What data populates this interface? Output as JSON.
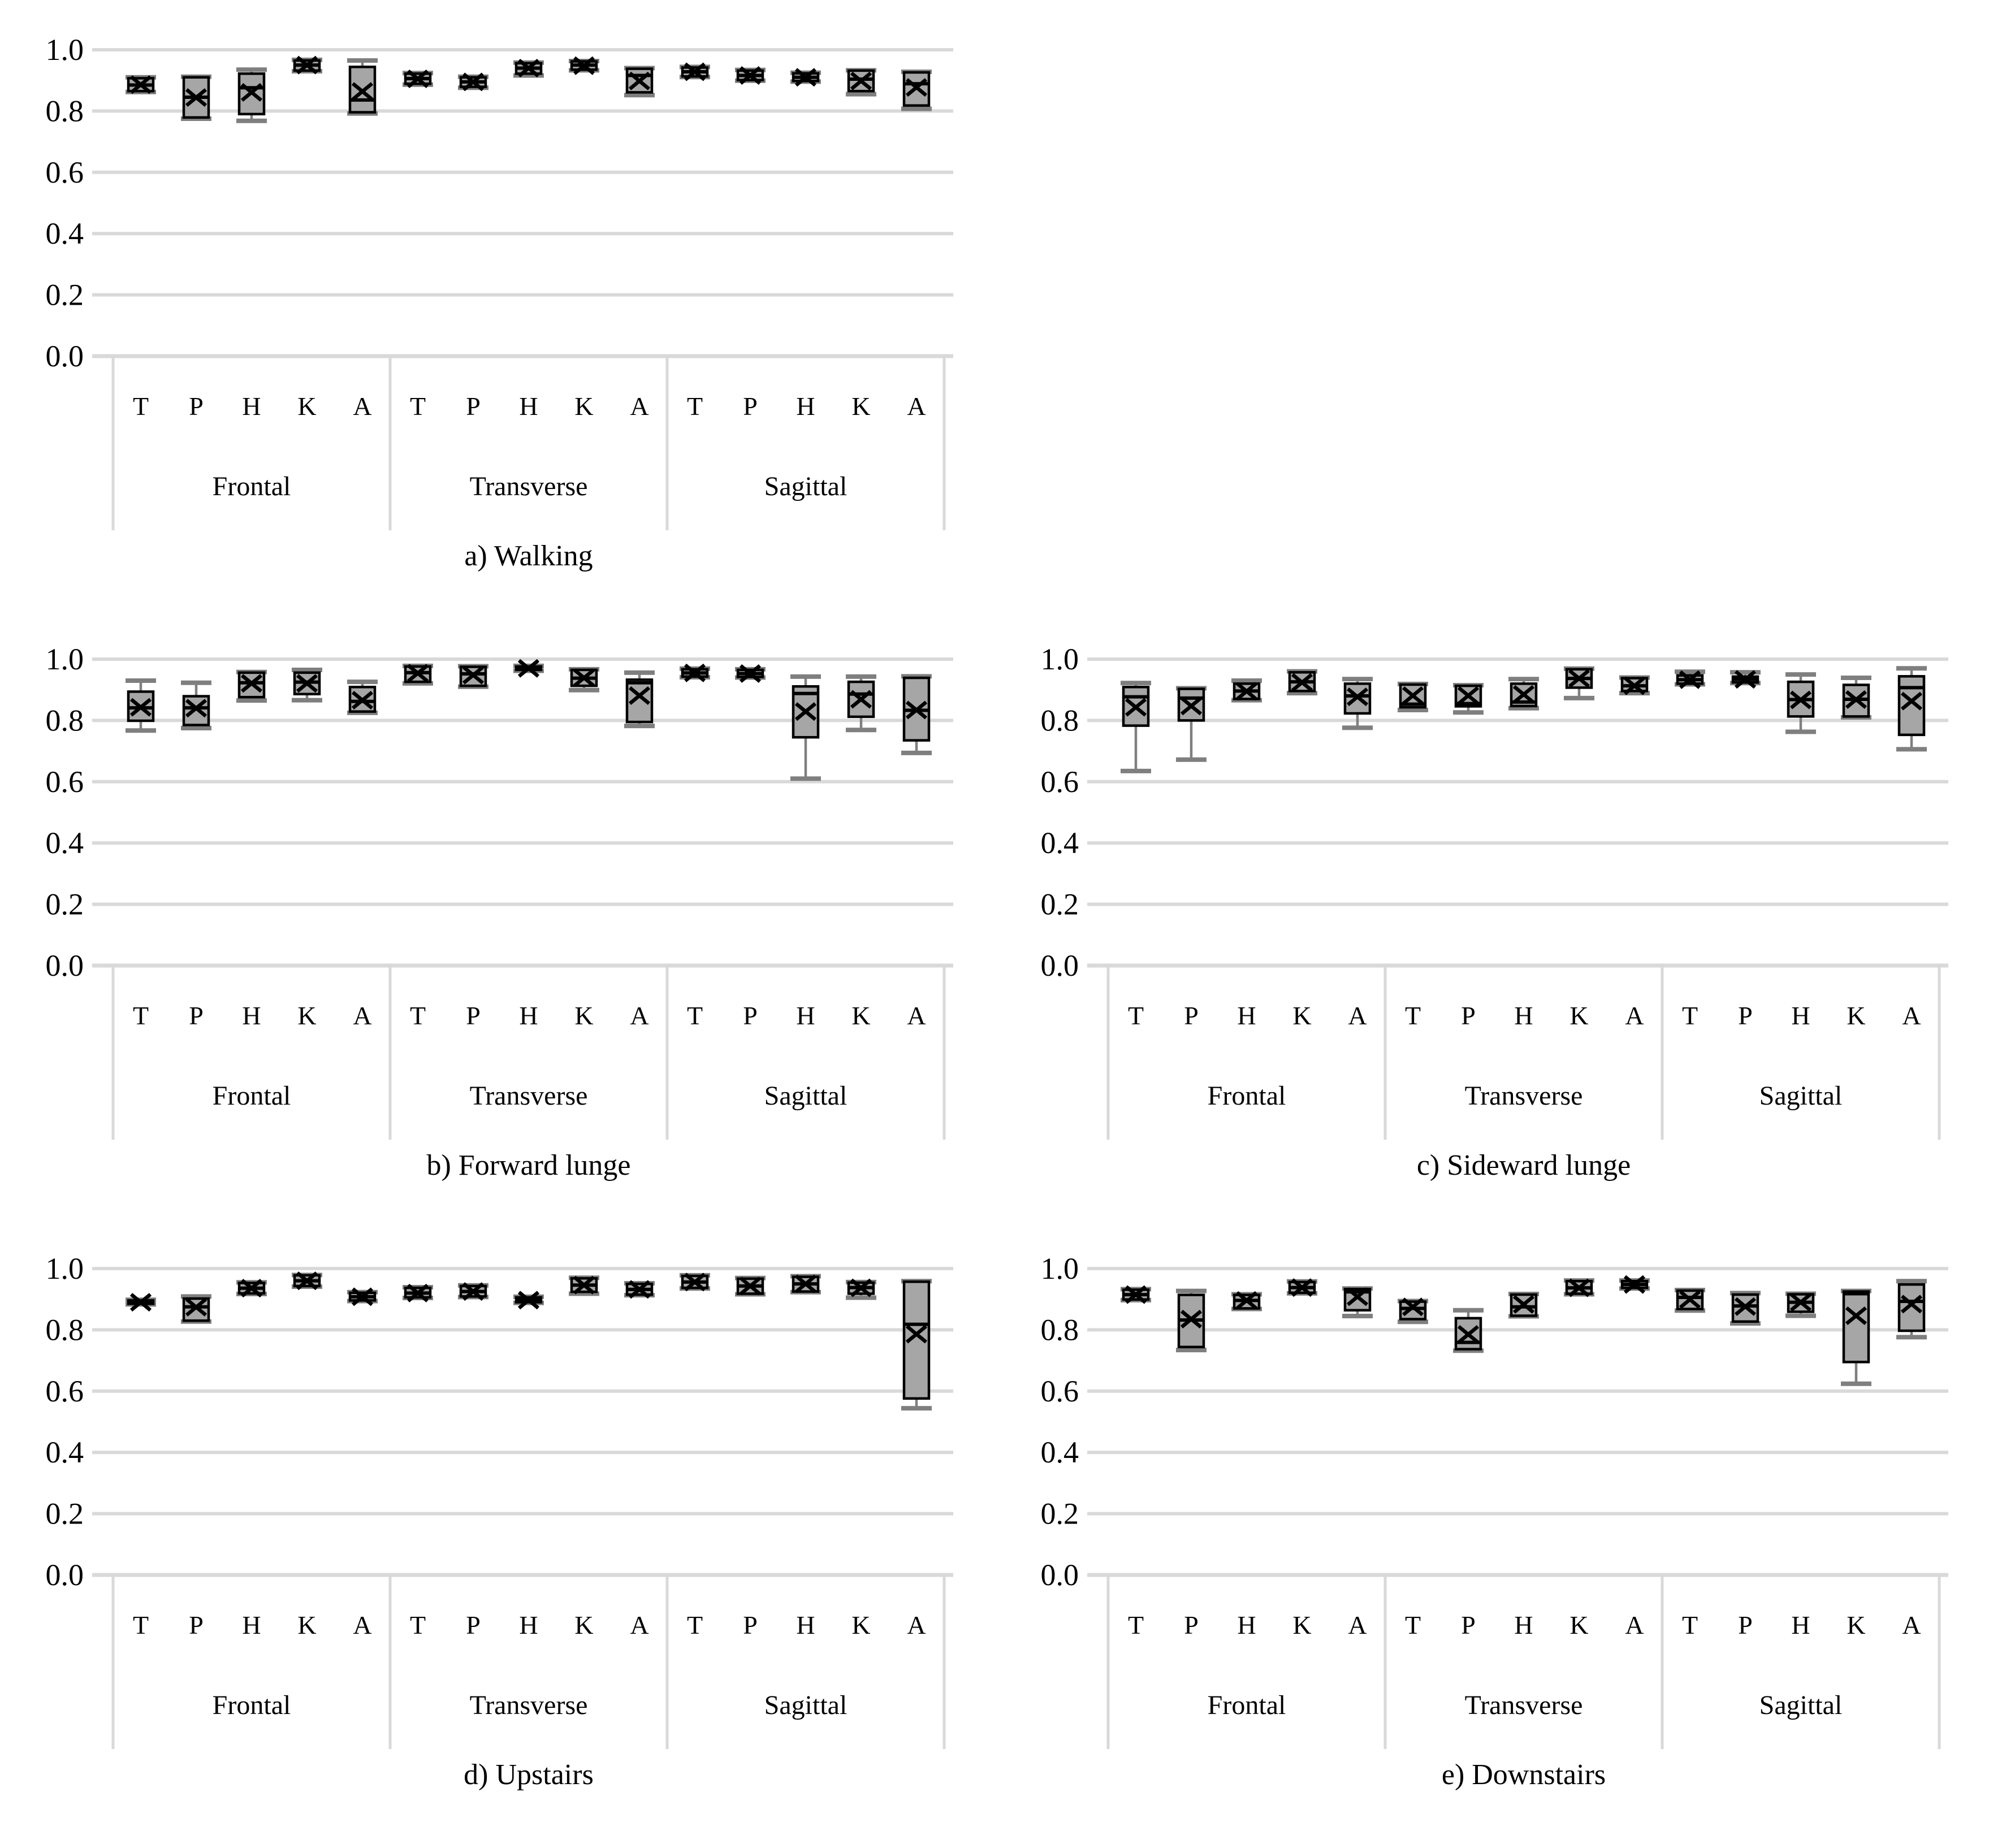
{
  "style": {
    "background": "#ffffff",
    "box_fill": "#a6a6a6",
    "box_stroke": "#000000",
    "whisker_color": "#7f7f7f",
    "gridline_color": "#d9d9d9",
    "text_color": "#000000"
  },
  "axis": {
    "yticks": [
      "1.0",
      "0.8",
      "0.6",
      "0.4",
      "0.2",
      "0.0"
    ],
    "categories": [
      "T",
      "P",
      "H",
      "K",
      "A"
    ],
    "groups": [
      "Frontal",
      "Transverse",
      "Sagittal"
    ]
  },
  "chart_data": [
    {
      "type": "box",
      "title": "a) Walking",
      "ylim": [
        0,
        1
      ],
      "yticks": [
        "1.0",
        "0.8",
        "0.6",
        "0.4",
        "0.2",
        "0.0"
      ],
      "groups": [
        "Frontal",
        "Transverse",
        "Sagittal"
      ],
      "categories": [
        "T",
        "P",
        "H",
        "K",
        "A"
      ],
      "legend": "none",
      "grid": true,
      "boxes": [
        {
          "group": "Frontal",
          "label": "T",
          "whislo": 0.862,
          "q1": 0.865,
          "med": 0.885,
          "q3": 0.907,
          "whishi": 0.91,
          "mean": 0.886
        },
        {
          "group": "Frontal",
          "label": "P",
          "whislo": 0.775,
          "q1": 0.779,
          "med": 0.845,
          "q3": 0.91,
          "whishi": 0.912,
          "mean": 0.844
        },
        {
          "group": "Frontal",
          "label": "H",
          "whislo": 0.768,
          "q1": 0.79,
          "med": 0.876,
          "q3": 0.922,
          "whishi": 0.935,
          "mean": 0.861
        },
        {
          "group": "Frontal",
          "label": "K",
          "whislo": 0.93,
          "q1": 0.932,
          "med": 0.95,
          "q3": 0.965,
          "whishi": 0.967,
          "mean": 0.95
        },
        {
          "group": "Frontal",
          "label": "A",
          "whislo": 0.792,
          "q1": 0.796,
          "med": 0.836,
          "q3": 0.944,
          "whishi": 0.965,
          "mean": 0.864
        },
        {
          "group": "Transverse",
          "label": "T",
          "whislo": 0.886,
          "q1": 0.889,
          "med": 0.906,
          "q3": 0.922,
          "whishi": 0.924,
          "mean": 0.905
        },
        {
          "group": "Transverse",
          "label": "P",
          "whislo": 0.876,
          "q1": 0.879,
          "med": 0.895,
          "q3": 0.91,
          "whishi": 0.912,
          "mean": 0.895
        },
        {
          "group": "Transverse",
          "label": "H",
          "whislo": 0.916,
          "q1": 0.922,
          "med": 0.94,
          "q3": 0.956,
          "whishi": 0.958,
          "mean": 0.94
        },
        {
          "group": "Transverse",
          "label": "K",
          "whislo": 0.933,
          "q1": 0.935,
          "med": 0.95,
          "q3": 0.962,
          "whishi": 0.963,
          "mean": 0.948
        },
        {
          "group": "Transverse",
          "label": "A",
          "whislo": 0.852,
          "q1": 0.861,
          "med": 0.916,
          "q3": 0.938,
          "whishi": 0.94,
          "mean": 0.898
        },
        {
          "group": "Sagittal",
          "label": "T",
          "whislo": 0.911,
          "q1": 0.913,
          "med": 0.928,
          "q3": 0.942,
          "whishi": 0.944,
          "mean": 0.928
        },
        {
          "group": "Sagittal",
          "label": "P",
          "whislo": 0.899,
          "q1": 0.901,
          "med": 0.916,
          "q3": 0.932,
          "whishi": 0.934,
          "mean": 0.916
        },
        {
          "group": "Sagittal",
          "label": "H",
          "whislo": 0.896,
          "q1": 0.898,
          "med": 0.91,
          "q3": 0.923,
          "whishi": 0.925,
          "mean": 0.91
        },
        {
          "group": "Sagittal",
          "label": "K",
          "whislo": 0.855,
          "q1": 0.865,
          "med": 0.904,
          "q3": 0.932,
          "whishi": 0.933,
          "mean": 0.898
        },
        {
          "group": "Sagittal",
          "label": "A",
          "whislo": 0.807,
          "q1": 0.818,
          "med": 0.889,
          "q3": 0.926,
          "whishi": 0.928,
          "mean": 0.877
        }
      ]
    },
    {
      "type": "box",
      "title": "b) Forward lunge",
      "ylim": [
        0,
        1
      ],
      "yticks": [
        "1.0",
        "0.8",
        "0.6",
        "0.4",
        "0.2",
        "0.0"
      ],
      "groups": [
        "Frontal",
        "Transverse",
        "Sagittal"
      ],
      "categories": [
        "T",
        "P",
        "H",
        "K",
        "A"
      ],
      "legend": "none",
      "grid": true,
      "boxes": [
        {
          "group": "Frontal",
          "label": "T",
          "whislo": 0.767,
          "q1": 0.799,
          "med": 0.841,
          "q3": 0.894,
          "whishi": 0.93,
          "mean": 0.843
        },
        {
          "group": "Frontal",
          "label": "P",
          "whislo": 0.775,
          "q1": 0.785,
          "med": 0.841,
          "q3": 0.879,
          "whishi": 0.923,
          "mean": 0.84
        },
        {
          "group": "Frontal",
          "label": "H",
          "whislo": 0.865,
          "q1": 0.876,
          "med": 0.923,
          "q3": 0.956,
          "whishi": 0.958,
          "mean": 0.921
        },
        {
          "group": "Frontal",
          "label": "K",
          "whislo": 0.866,
          "q1": 0.886,
          "med": 0.925,
          "q3": 0.956,
          "whishi": 0.965,
          "mean": 0.921
        },
        {
          "group": "Frontal",
          "label": "A",
          "whislo": 0.825,
          "q1": 0.829,
          "med": 0.862,
          "q3": 0.909,
          "whishi": 0.926,
          "mean": 0.866
        },
        {
          "group": "Transverse",
          "label": "T",
          "whislo": 0.921,
          "q1": 0.926,
          "med": 0.956,
          "q3": 0.976,
          "whishi": 0.978,
          "mean": 0.954
        },
        {
          "group": "Transverse",
          "label": "P",
          "whislo": 0.91,
          "q1": 0.913,
          "med": 0.952,
          "q3": 0.975,
          "whishi": 0.977,
          "mean": 0.948
        },
        {
          "group": "Transverse",
          "label": "H",
          "whislo": 0.962,
          "q1": 0.965,
          "med": 0.97,
          "q3": 0.976,
          "whishi": 0.978,
          "mean": 0.97
        },
        {
          "group": "Transverse",
          "label": "K",
          "whislo": 0.899,
          "q1": 0.913,
          "med": 0.938,
          "q3": 0.965,
          "whishi": 0.967,
          "mean": 0.939
        },
        {
          "group": "Transverse",
          "label": "A",
          "whislo": 0.782,
          "q1": 0.795,
          "med": 0.923,
          "q3": 0.933,
          "whishi": 0.956,
          "mean": 0.881
        },
        {
          "group": "Sagittal",
          "label": "T",
          "whislo": 0.941,
          "q1": 0.943,
          "med": 0.955,
          "q3": 0.967,
          "whishi": 0.969,
          "mean": 0.955
        },
        {
          "group": "Sagittal",
          "label": "P",
          "whislo": 0.94,
          "q1": 0.942,
          "med": 0.953,
          "q3": 0.965,
          "whishi": 0.967,
          "mean": 0.953
        },
        {
          "group": "Sagittal",
          "label": "H",
          "whislo": 0.61,
          "q1": 0.745,
          "med": 0.888,
          "q3": 0.911,
          "whishi": 0.943,
          "mean": 0.829
        },
        {
          "group": "Sagittal",
          "label": "K",
          "whislo": 0.769,
          "q1": 0.812,
          "med": 0.886,
          "q3": 0.926,
          "whishi": 0.943,
          "mean": 0.869
        },
        {
          "group": "Sagittal",
          "label": "A",
          "whislo": 0.694,
          "q1": 0.735,
          "med": 0.833,
          "q3": 0.939,
          "whishi": 0.944,
          "mean": 0.834
        }
      ]
    },
    {
      "type": "box",
      "title": "c) Sideward lunge",
      "ylim": [
        0,
        1
      ],
      "yticks": [
        "1.0",
        "0.8",
        "0.6",
        "0.4",
        "0.2",
        "0.0"
      ],
      "groups": [
        "Frontal",
        "Transverse",
        "Sagittal"
      ],
      "categories": [
        "T",
        "P",
        "H",
        "K",
        "A"
      ],
      "legend": "none",
      "grid": true,
      "boxes": [
        {
          "group": "Frontal",
          "label": "T",
          "whislo": 0.635,
          "q1": 0.783,
          "med": 0.877,
          "q3": 0.909,
          "whishi": 0.922,
          "mean": 0.843
        },
        {
          "group": "Frontal",
          "label": "P",
          "whislo": 0.672,
          "q1": 0.8,
          "med": 0.873,
          "q3": 0.903,
          "whishi": 0.905,
          "mean": 0.847
        },
        {
          "group": "Frontal",
          "label": "H",
          "whislo": 0.866,
          "q1": 0.87,
          "med": 0.896,
          "q3": 0.92,
          "whishi": 0.93,
          "mean": 0.895
        },
        {
          "group": "Frontal",
          "label": "K",
          "whislo": 0.889,
          "q1": 0.896,
          "med": 0.926,
          "q3": 0.957,
          "whishi": 0.96,
          "mean": 0.924
        },
        {
          "group": "Frontal",
          "label": "A",
          "whislo": 0.776,
          "q1": 0.823,
          "med": 0.88,
          "q3": 0.92,
          "whishi": 0.935,
          "mean": 0.877
        },
        {
          "group": "Transverse",
          "label": "T",
          "whislo": 0.834,
          "q1": 0.843,
          "med": 0.853,
          "q3": 0.917,
          "whishi": 0.919,
          "mean": 0.881
        },
        {
          "group": "Transverse",
          "label": "P",
          "whislo": 0.826,
          "q1": 0.846,
          "med": 0.855,
          "q3": 0.913,
          "whishi": 0.915,
          "mean": 0.881
        },
        {
          "group": "Transverse",
          "label": "H",
          "whislo": 0.84,
          "q1": 0.847,
          "med": 0.86,
          "q3": 0.92,
          "whishi": 0.935,
          "mean": 0.885
        },
        {
          "group": "Transverse",
          "label": "K",
          "whislo": 0.873,
          "q1": 0.907,
          "med": 0.937,
          "q3": 0.967,
          "whishi": 0.969,
          "mean": 0.937
        },
        {
          "group": "Transverse",
          "label": "A",
          "whislo": 0.889,
          "q1": 0.896,
          "med": 0.913,
          "q3": 0.938,
          "whishi": 0.94,
          "mean": 0.913
        },
        {
          "group": "Sagittal",
          "label": "T",
          "whislo": 0.918,
          "q1": 0.92,
          "med": 0.933,
          "q3": 0.947,
          "whishi": 0.959,
          "mean": 0.933
        },
        {
          "group": "Sagittal",
          "label": "P",
          "whislo": 0.922,
          "q1": 0.924,
          "med": 0.934,
          "q3": 0.943,
          "whishi": 0.957,
          "mean": 0.934
        },
        {
          "group": "Sagittal",
          "label": "H",
          "whislo": 0.763,
          "q1": 0.813,
          "med": 0.868,
          "q3": 0.926,
          "whishi": 0.95,
          "mean": 0.867
        },
        {
          "group": "Sagittal",
          "label": "K",
          "whislo": 0.81,
          "q1": 0.813,
          "med": 0.869,
          "q3": 0.916,
          "whishi": 0.939,
          "mean": 0.868
        },
        {
          "group": "Sagittal",
          "label": "A",
          "whislo": 0.706,
          "q1": 0.753,
          "med": 0.907,
          "q3": 0.944,
          "whishi": 0.97,
          "mean": 0.863
        }
      ]
    },
    {
      "type": "box",
      "title": "d) Upstairs",
      "ylim": [
        0,
        1
      ],
      "yticks": [
        "1.0",
        "0.8",
        "0.6",
        "0.4",
        "0.2",
        "0.0"
      ],
      "groups": [
        "Frontal",
        "Transverse",
        "Sagittal"
      ],
      "categories": [
        "T",
        "P",
        "H",
        "K",
        "A"
      ],
      "legend": "none",
      "grid": true,
      "boxes": [
        {
          "group": "Frontal",
          "label": "T",
          "whislo": 0.883,
          "q1": 0.885,
          "med": 0.89,
          "q3": 0.896,
          "whishi": 0.898,
          "mean": 0.89
        },
        {
          "group": "Frontal",
          "label": "P",
          "whislo": 0.827,
          "q1": 0.83,
          "med": 0.875,
          "q3": 0.902,
          "whishi": 0.909,
          "mean": 0.874
        },
        {
          "group": "Frontal",
          "label": "H",
          "whislo": 0.917,
          "q1": 0.919,
          "med": 0.936,
          "q3": 0.953,
          "whishi": 0.955,
          "mean": 0.936
        },
        {
          "group": "Frontal",
          "label": "K",
          "whislo": 0.941,
          "q1": 0.943,
          "med": 0.96,
          "q3": 0.978,
          "whishi": 0.979,
          "mean": 0.96
        },
        {
          "group": "Frontal",
          "label": "A",
          "whislo": 0.894,
          "q1": 0.896,
          "med": 0.908,
          "q3": 0.921,
          "whishi": 0.923,
          "mean": 0.908
        },
        {
          "group": "Transverse",
          "label": "T",
          "whislo": 0.904,
          "q1": 0.906,
          "med": 0.92,
          "q3": 0.937,
          "whishi": 0.939,
          "mean": 0.92
        },
        {
          "group": "Transverse",
          "label": "P",
          "whislo": 0.907,
          "q1": 0.909,
          "med": 0.925,
          "q3": 0.943,
          "whishi": 0.945,
          "mean": 0.925
        },
        {
          "group": "Transverse",
          "label": "H",
          "whislo": 0.888,
          "q1": 0.89,
          "med": 0.897,
          "q3": 0.906,
          "whishi": 0.908,
          "mean": 0.897
        },
        {
          "group": "Transverse",
          "label": "K",
          "whislo": 0.918,
          "q1": 0.924,
          "med": 0.946,
          "q3": 0.968,
          "whishi": 0.97,
          "mean": 0.946
        },
        {
          "group": "Transverse",
          "label": "A",
          "whislo": 0.913,
          "q1": 0.915,
          "med": 0.932,
          "q3": 0.95,
          "whishi": 0.952,
          "mean": 0.932
        },
        {
          "group": "Sagittal",
          "label": "T",
          "whislo": 0.935,
          "q1": 0.937,
          "med": 0.956,
          "q3": 0.976,
          "whishi": 0.978,
          "mean": 0.956
        },
        {
          "group": "Sagittal",
          "label": "P",
          "whislo": 0.916,
          "q1": 0.918,
          "med": 0.943,
          "q3": 0.967,
          "whishi": 0.969,
          "mean": 0.943
        },
        {
          "group": "Sagittal",
          "label": "H",
          "whislo": 0.923,
          "q1": 0.925,
          "med": 0.95,
          "q3": 0.973,
          "whishi": 0.975,
          "mean": 0.95
        },
        {
          "group": "Sagittal",
          "label": "K",
          "whislo": 0.905,
          "q1": 0.918,
          "med": 0.938,
          "q3": 0.954,
          "whishi": 0.956,
          "mean": 0.937
        },
        {
          "group": "Sagittal",
          "label": "A",
          "whislo": 0.544,
          "q1": 0.576,
          "med": 0.818,
          "q3": 0.957,
          "whishi": 0.959,
          "mean": 0.786
        }
      ]
    },
    {
      "type": "box",
      "title": "e) Downstairs",
      "ylim": [
        0,
        1
      ],
      "yticks": [
        "1.0",
        "0.8",
        "0.6",
        "0.4",
        "0.2",
        "0.0"
      ],
      "groups": [
        "Frontal",
        "Transverse",
        "Sagittal"
      ],
      "categories": [
        "T",
        "P",
        "H",
        "K",
        "A"
      ],
      "legend": "none",
      "grid": true,
      "boxes": [
        {
          "group": "Frontal",
          "label": "T",
          "whislo": 0.897,
          "q1": 0.899,
          "med": 0.915,
          "q3": 0.931,
          "whishi": 0.933,
          "mean": 0.915
        },
        {
          "group": "Frontal",
          "label": "P",
          "whislo": 0.734,
          "q1": 0.744,
          "med": 0.832,
          "q3": 0.914,
          "whishi": 0.927,
          "mean": 0.835
        },
        {
          "group": "Frontal",
          "label": "H",
          "whislo": 0.868,
          "q1": 0.87,
          "med": 0.896,
          "q3": 0.914,
          "whishi": 0.916,
          "mean": 0.896
        },
        {
          "group": "Frontal",
          "label": "K",
          "whislo": 0.919,
          "q1": 0.921,
          "med": 0.938,
          "q3": 0.956,
          "whishi": 0.958,
          "mean": 0.938
        },
        {
          "group": "Frontal",
          "label": "A",
          "whislo": 0.845,
          "q1": 0.864,
          "med": 0.924,
          "q3": 0.933,
          "whishi": 0.935,
          "mean": 0.908
        },
        {
          "group": "Transverse",
          "label": "T",
          "whislo": 0.826,
          "q1": 0.835,
          "med": 0.87,
          "q3": 0.892,
          "whishi": 0.894,
          "mean": 0.875
        },
        {
          "group": "Transverse",
          "label": "P",
          "whislo": 0.732,
          "q1": 0.737,
          "med": 0.759,
          "q3": 0.838,
          "whishi": 0.864,
          "mean": 0.785
        },
        {
          "group": "Transverse",
          "label": "H",
          "whislo": 0.844,
          "q1": 0.846,
          "med": 0.875,
          "q3": 0.915,
          "whishi": 0.917,
          "mean": 0.883
        },
        {
          "group": "Transverse",
          "label": "K",
          "whislo": 0.916,
          "q1": 0.918,
          "med": 0.937,
          "q3": 0.959,
          "whishi": 0.961,
          "mean": 0.937
        },
        {
          "group": "Transverse",
          "label": "A",
          "whislo": 0.935,
          "q1": 0.937,
          "med": 0.948,
          "q3": 0.959,
          "whishi": 0.961,
          "mean": 0.948
        },
        {
          "group": "Sagittal",
          "label": "T",
          "whislo": 0.863,
          "q1": 0.868,
          "med": 0.906,
          "q3": 0.928,
          "whishi": 0.93,
          "mean": 0.899
        },
        {
          "group": "Sagittal",
          "label": "P",
          "whislo": 0.821,
          "q1": 0.827,
          "med": 0.878,
          "q3": 0.915,
          "whishi": 0.92,
          "mean": 0.876
        },
        {
          "group": "Sagittal",
          "label": "H",
          "whislo": 0.846,
          "q1": 0.859,
          "med": 0.89,
          "q3": 0.916,
          "whishi": 0.918,
          "mean": 0.89
        },
        {
          "group": "Sagittal",
          "label": "K",
          "whislo": 0.624,
          "q1": 0.695,
          "med": 0.918,
          "q3": 0.925,
          "whishi": 0.927,
          "mean": 0.846
        },
        {
          "group": "Sagittal",
          "label": "A",
          "whislo": 0.776,
          "q1": 0.797,
          "med": 0.893,
          "q3": 0.948,
          "whishi": 0.959,
          "mean": 0.884
        }
      ]
    }
  ]
}
